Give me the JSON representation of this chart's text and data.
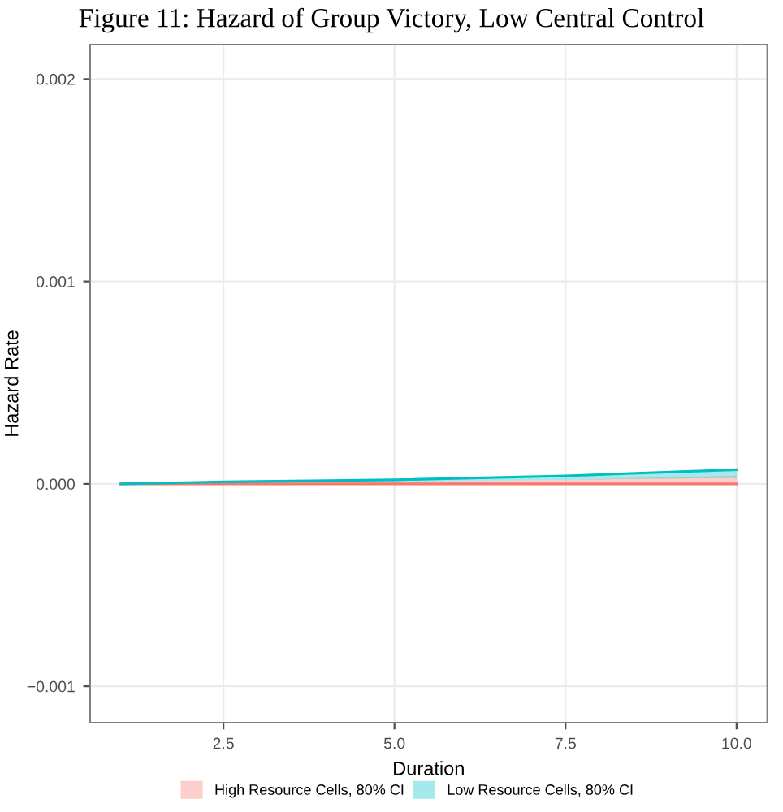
{
  "chart_data": {
    "type": "line",
    "title": "Figure 11: Hazard of Group Victory, Low Central Control",
    "xlabel": "Duration",
    "ylabel": "Hazard Rate",
    "x": [
      1,
      2.5,
      5,
      7.5,
      10
    ],
    "series": [
      {
        "name": "High Resource Cells, 80% CI",
        "color": "#f8766d",
        "values": [
          0,
          0,
          0,
          0,
          0
        ],
        "lower": [
          0,
          0,
          0,
          0,
          0
        ],
        "upper": [
          0,
          0,
          1e-05,
          2e-05,
          4e-05
        ]
      },
      {
        "name": "Low Resource Cells, 80% CI",
        "color": "#00bfc4",
        "values": [
          0,
          1e-05,
          2e-05,
          4e-05,
          7e-05
        ],
        "lower": [
          0,
          0,
          1e-05,
          2e-05,
          3e-05
        ],
        "upper": [
          0,
          1e-05,
          2e-05,
          4e-05,
          7e-05
        ]
      }
    ],
    "xlim": [
      0.55,
      10.45
    ],
    "ylim": [
      -0.00118,
      0.00217
    ],
    "xticks": [
      {
        "value": 2.5,
        "label": "2.5"
      },
      {
        "value": 5,
        "label": "5.0"
      },
      {
        "value": 7.5,
        "label": "7.5"
      },
      {
        "value": 10,
        "label": "10.0"
      }
    ],
    "yticks": [
      {
        "value": -0.001,
        "label": "−0.001"
      },
      {
        "value": 0,
        "label": "0.000"
      },
      {
        "value": 0.001,
        "label": "0.001"
      },
      {
        "value": 0.002,
        "label": "0.002"
      }
    ],
    "grid": true,
    "legend": "bottom"
  }
}
